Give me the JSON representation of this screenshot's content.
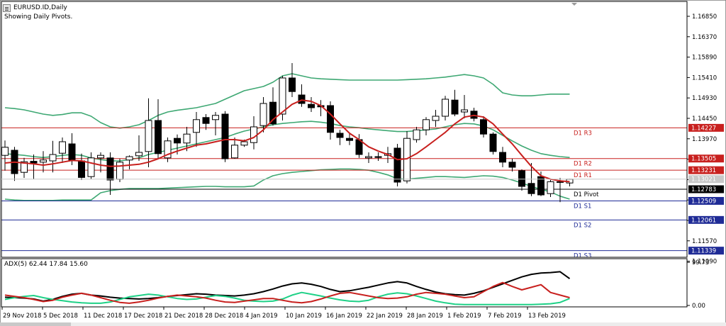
{
  "window": {
    "title": "EURUSD.ID,Daily",
    "subtitle": "Showing Daily Pivots."
  },
  "chart_data": [
    {
      "type": "candlestick",
      "symbol": "EURUSD.ID",
      "timeframe": "Daily",
      "ylim": [
        1.11,
        1.172
      ],
      "y_ticks": [
        "1.16850",
        "1.16370",
        "1.15890",
        "1.15410",
        "1.14930",
        "1.14450",
        "1.13970",
        "1.13490",
        "1.13010",
        "1.12530",
        "1.12050",
        "1.11570",
        "1.11090"
      ],
      "x_ticks": [
        "29 Nov 2018",
        "5 Dec 2018",
        "11 Dec 2018",
        "17 Dec 2018",
        "21 Dec 2018",
        "28 Dec 2018",
        "4 Jan 2019",
        "10 Jan 2019",
        "16 Jan 2019",
        "22 Jan 2019",
        "28 Jan 2019",
        "1 Feb 2019",
        "7 Feb 2019",
        "13 Feb 2019"
      ],
      "candles": [
        {
          "o": 1.1358,
          "h": 1.1393,
          "l": 1.1322,
          "c": 1.1377
        },
        {
          "o": 1.137,
          "h": 1.1378,
          "l": 1.1298,
          "c": 1.1315
        },
        {
          "o": 1.1318,
          "h": 1.1352,
          "l": 1.1305,
          "c": 1.1343
        },
        {
          "o": 1.1344,
          "h": 1.136,
          "l": 1.1302,
          "c": 1.134
        },
        {
          "o": 1.1342,
          "h": 1.1368,
          "l": 1.1318,
          "c": 1.1347
        },
        {
          "o": 1.1345,
          "h": 1.1392,
          "l": 1.1318,
          "c": 1.136
        },
        {
          "o": 1.1363,
          "h": 1.14,
          "l": 1.134,
          "c": 1.139
        },
        {
          "o": 1.1385,
          "h": 1.141,
          "l": 1.1335,
          "c": 1.1345
        },
        {
          "o": 1.1345,
          "h": 1.1362,
          "l": 1.13,
          "c": 1.1306
        },
        {
          "o": 1.1308,
          "h": 1.1365,
          "l": 1.1302,
          "c": 1.1352
        },
        {
          "o": 1.1352,
          "h": 1.1365,
          "l": 1.1318,
          "c": 1.1358
        },
        {
          "o": 1.1352,
          "h": 1.1365,
          "l": 1.1265,
          "c": 1.13
        },
        {
          "o": 1.1302,
          "h": 1.135,
          "l": 1.1295,
          "c": 1.1342
        },
        {
          "o": 1.1347,
          "h": 1.1358,
          "l": 1.1325,
          "c": 1.1355
        },
        {
          "o": 1.1357,
          "h": 1.1405,
          "l": 1.1345,
          "c": 1.1365
        },
        {
          "o": 1.1367,
          "h": 1.1492,
          "l": 1.133,
          "c": 1.144
        },
        {
          "o": 1.144,
          "h": 1.149,
          "l": 1.135,
          "c": 1.1362
        },
        {
          "o": 1.1352,
          "h": 1.14,
          "l": 1.1342,
          "c": 1.1392
        },
        {
          "o": 1.1398,
          "h": 1.1407,
          "l": 1.136,
          "c": 1.1387
        },
        {
          "o": 1.1387,
          "h": 1.1425,
          "l": 1.1368,
          "c": 1.1408
        },
        {
          "o": 1.1412,
          "h": 1.146,
          "l": 1.1378,
          "c": 1.1442
        },
        {
          "o": 1.1447,
          "h": 1.1455,
          "l": 1.1418,
          "c": 1.1433
        },
        {
          "o": 1.1442,
          "h": 1.146,
          "l": 1.1405,
          "c": 1.1452
        },
        {
          "o": 1.1455,
          "h": 1.1462,
          "l": 1.1342,
          "c": 1.135
        },
        {
          "o": 1.1352,
          "h": 1.14,
          "l": 1.135,
          "c": 1.1382
        },
        {
          "o": 1.1382,
          "h": 1.1395,
          "l": 1.1378,
          "c": 1.139
        },
        {
          "o": 1.1388,
          "h": 1.145,
          "l": 1.1372,
          "c": 1.1425
        },
        {
          "o": 1.1428,
          "h": 1.1495,
          "l": 1.1412,
          "c": 1.148
        },
        {
          "o": 1.1483,
          "h": 1.1518,
          "l": 1.1428,
          "c": 1.1432
        },
        {
          "o": 1.1455,
          "h": 1.1545,
          "l": 1.144,
          "c": 1.154
        },
        {
          "o": 1.154,
          "h": 1.1575,
          "l": 1.1495,
          "c": 1.1508
        },
        {
          "o": 1.15,
          "h": 1.1525,
          "l": 1.1472,
          "c": 1.148
        },
        {
          "o": 1.1478,
          "h": 1.1495,
          "l": 1.146,
          "c": 1.147
        },
        {
          "o": 1.1475,
          "h": 1.1488,
          "l": 1.145,
          "c": 1.1472
        },
        {
          "o": 1.1475,
          "h": 1.1485,
          "l": 1.1395,
          "c": 1.1412
        },
        {
          "o": 1.141,
          "h": 1.1418,
          "l": 1.1382,
          "c": 1.14
        },
        {
          "o": 1.1398,
          "h": 1.141,
          "l": 1.1382,
          "c": 1.1393
        },
        {
          "o": 1.1395,
          "h": 1.1408,
          "l": 1.1352,
          "c": 1.136
        },
        {
          "o": 1.1352,
          "h": 1.1365,
          "l": 1.134,
          "c": 1.1355
        },
        {
          "o": 1.1355,
          "h": 1.1365,
          "l": 1.1345,
          "c": 1.1353
        },
        {
          "o": 1.1358,
          "h": 1.1378,
          "l": 1.134,
          "c": 1.1362
        },
        {
          "o": 1.1375,
          "h": 1.1385,
          "l": 1.1285,
          "c": 1.1295
        },
        {
          "o": 1.1298,
          "h": 1.1415,
          "l": 1.1292,
          "c": 1.1398
        },
        {
          "o": 1.1395,
          "h": 1.1425,
          "l": 1.1388,
          "c": 1.1418
        },
        {
          "o": 1.1418,
          "h": 1.1448,
          "l": 1.1405,
          "c": 1.1442
        },
        {
          "o": 1.144,
          "h": 1.1465,
          "l": 1.1425,
          "c": 1.145
        },
        {
          "o": 1.145,
          "h": 1.1498,
          "l": 1.144,
          "c": 1.149
        },
        {
          "o": 1.1488,
          "h": 1.1512,
          "l": 1.145,
          "c": 1.1455
        },
        {
          "o": 1.146,
          "h": 1.15,
          "l": 1.1445,
          "c": 1.1465
        },
        {
          "o": 1.1462,
          "h": 1.147,
          "l": 1.1438,
          "c": 1.1445
        },
        {
          "o": 1.1442,
          "h": 1.145,
          "l": 1.14,
          "c": 1.1408
        },
        {
          "o": 1.1408,
          "h": 1.1412,
          "l": 1.136,
          "c": 1.1367
        },
        {
          "o": 1.1365,
          "h": 1.1378,
          "l": 1.133,
          "c": 1.1342
        },
        {
          "o": 1.1342,
          "h": 1.135,
          "l": 1.132,
          "c": 1.133
        },
        {
          "o": 1.1322,
          "h": 1.1325,
          "l": 1.1275,
          "c": 1.1285
        },
        {
          "o": 1.1292,
          "h": 1.134,
          "l": 1.1262,
          "c": 1.1268
        },
        {
          "o": 1.1308,
          "h": 1.132,
          "l": 1.1262,
          "c": 1.1265
        },
        {
          "o": 1.1268,
          "h": 1.13,
          "l": 1.126,
          "c": 1.1296
        },
        {
          "o": 1.1296,
          "h": 1.1305,
          "l": 1.1248,
          "c": 1.1295
        },
        {
          "o": 1.1293,
          "h": 1.1303,
          "l": 1.1285,
          "c": 1.1302
        }
      ],
      "ma_values": [
        1.134,
        1.1342,
        1.134,
        1.1338,
        1.1335,
        1.1338,
        1.1342,
        1.1346,
        1.1345,
        1.134,
        1.1335,
        1.1332,
        1.1333,
        1.1335,
        1.1337,
        1.1342,
        1.135,
        1.136,
        1.1368,
        1.1375,
        1.1382,
        1.1385,
        1.139,
        1.1395,
        1.1395,
        1.1392,
        1.14,
        1.1418,
        1.1442,
        1.146,
        1.1478,
        1.1488,
        1.1485,
        1.1475,
        1.1455,
        1.1432,
        1.141,
        1.1395,
        1.1378,
        1.1368,
        1.136,
        1.1348,
        1.135,
        1.1362,
        1.1378,
        1.1395,
        1.1412,
        1.1432,
        1.1448,
        1.1452,
        1.1448,
        1.1432,
        1.1408,
        1.1385,
        1.1358,
        1.1332,
        1.131,
        1.1302,
        1.1298,
        1.1296
      ],
      "bb_upper": [
        1.147,
        1.1468,
        1.1465,
        1.146,
        1.1455,
        1.1452,
        1.1454,
        1.1458,
        1.1458,
        1.145,
        1.1435,
        1.1425,
        1.1422,
        1.1425,
        1.143,
        1.144,
        1.1452,
        1.146,
        1.1464,
        1.1467,
        1.147,
        1.1475,
        1.148,
        1.149,
        1.15,
        1.151,
        1.1515,
        1.152,
        1.153,
        1.1545,
        1.155,
        1.1545,
        1.154,
        1.1538,
        1.1537,
        1.1536,
        1.1535,
        1.1535,
        1.1535,
        1.1535,
        1.1535,
        1.1535,
        1.1536,
        1.1537,
        1.1538,
        1.154,
        1.1542,
        1.1545,
        1.1548,
        1.1545,
        1.154,
        1.1525,
        1.1505,
        1.15,
        1.1498,
        1.1498,
        1.15,
        1.1502,
        1.1502,
        1.1502
      ],
      "bb_middle": [
        1.1362,
        1.136,
        1.1358,
        1.1355,
        1.1353,
        1.1355,
        1.1358,
        1.136,
        1.1358,
        1.1352,
        1.1348,
        1.1345,
        1.1345,
        1.1348,
        1.1352,
        1.136,
        1.1365,
        1.137,
        1.1375,
        1.138,
        1.1385,
        1.139,
        1.1395,
        1.14,
        1.1408,
        1.1415,
        1.142,
        1.1425,
        1.143,
        1.1433,
        1.1435,
        1.1437,
        1.1438,
        1.1436,
        1.1433,
        1.1428,
        1.1425,
        1.1423,
        1.142,
        1.1418,
        1.1416,
        1.1414,
        1.1414,
        1.1416,
        1.1418,
        1.142,
        1.1425,
        1.143,
        1.1433,
        1.1432,
        1.1427,
        1.1418,
        1.1405,
        1.1392,
        1.138,
        1.137,
        1.1362,
        1.1358,
        1.1355,
        1.1353
      ],
      "bb_lower": [
        1.1255,
        1.1253,
        1.1252,
        1.1252,
        1.1252,
        1.1252,
        1.1253,
        1.1253,
        1.1253,
        1.1253,
        1.127,
        1.1275,
        1.1278,
        1.128,
        1.128,
        1.128,
        1.128,
        1.1281,
        1.1282,
        1.1283,
        1.1284,
        1.1285,
        1.1285,
        1.1284,
        1.1284,
        1.1284,
        1.1286,
        1.13,
        1.131,
        1.1315,
        1.1318,
        1.132,
        1.1322,
        1.1324,
        1.1325,
        1.1326,
        1.1326,
        1.1325,
        1.1323,
        1.1318,
        1.1312,
        1.1303,
        1.1302,
        1.1304,
        1.1306,
        1.1308,
        1.1308,
        1.1307,
        1.1306,
        1.1308,
        1.131,
        1.1309,
        1.1306,
        1.13,
        1.1293,
        1.1285,
        1.1278,
        1.1272,
        1.1262,
        1.1255
      ],
      "pivot_levels": [
        {
          "label": "D1  R3",
          "value": 1.14227,
          "price": "1.14227"
        },
        {
          "label": "D1  R2",
          "value": 1.13505,
          "price": "1.13505"
        },
        {
          "label": "D1  R1",
          "value": 1.13231,
          "price": "1.13231"
        },
        {
          "label": "D1  Pivot",
          "value": 1.12783,
          "price": "1.12783"
        },
        {
          "label": "D1  S1",
          "value": 1.12509,
          "price": "1.12509"
        },
        {
          "label": "D1  S2",
          "value": 1.12061,
          "price": "1.12061"
        },
        {
          "label": "D1  S3",
          "value": 1.11339,
          "price": "1.11339"
        }
      ],
      "current_price": "1.13021",
      "colors": {
        "candle_up": "#ffffff",
        "candle_down": "#000000",
        "ma": "#c8201e",
        "bands": "#3ea873",
        "pivot_resistance": "#c8201e",
        "pivot_pivot": "#000000",
        "pivot_support": "#1f2b96"
      }
    },
    {
      "type": "line",
      "title": "ADX(5) 62.44 17.84 15.60",
      "ylim": [
        0,
        100
      ],
      "y_ticks": [
        "99.73",
        "0.00"
      ],
      "series": [
        {
          "name": "ADX",
          "color": "#000000",
          "values": [
            19,
            18,
            17,
            15,
            10,
            14,
            21,
            26,
            28,
            24,
            22,
            19,
            17,
            16,
            15,
            16,
            18,
            21,
            23,
            25,
            27,
            26,
            24,
            23,
            22,
            24,
            27,
            32,
            38,
            45,
            50,
            52,
            49,
            44,
            37,
            32,
            34,
            38,
            42,
            47,
            52,
            55,
            52,
            44,
            37,
            31,
            27,
            25,
            24,
            28,
            34,
            42,
            50,
            58,
            66,
            72,
            75,
            76,
            78,
            62
          ]
        },
        {
          "name": "+DI",
          "color": "#1fd187",
          "values": [
            14,
            18,
            21,
            23,
            18,
            14,
            11,
            8,
            6,
            5,
            5,
            8,
            14,
            20,
            23,
            26,
            24,
            20,
            16,
            14,
            15,
            19,
            23,
            21,
            17,
            12,
            10,
            9,
            10,
            15,
            24,
            30,
            26,
            22,
            17,
            13,
            10,
            9,
            12,
            20,
            26,
            29,
            27,
            22,
            16,
            10,
            6,
            3,
            2,
            2,
            2,
            2,
            2,
            2,
            2,
            2,
            3,
            4,
            7,
            16
          ]
        },
        {
          "name": "-DI",
          "color": "#c8201e",
          "values": [
            24,
            21,
            18,
            14,
            9,
            12,
            19,
            24,
            28,
            24,
            18,
            12,
            7,
            5,
            8,
            12,
            17,
            21,
            24,
            22,
            20,
            17,
            12,
            8,
            7,
            10,
            13,
            16,
            16,
            12,
            8,
            6,
            9,
            15,
            22,
            28,
            30,
            26,
            22,
            18,
            16,
            17,
            20,
            26,
            30,
            28,
            26,
            22,
            18,
            20,
            32,
            44,
            53,
            44,
            36,
            42,
            48,
            30,
            24,
            18
          ]
        }
      ]
    }
  ]
}
